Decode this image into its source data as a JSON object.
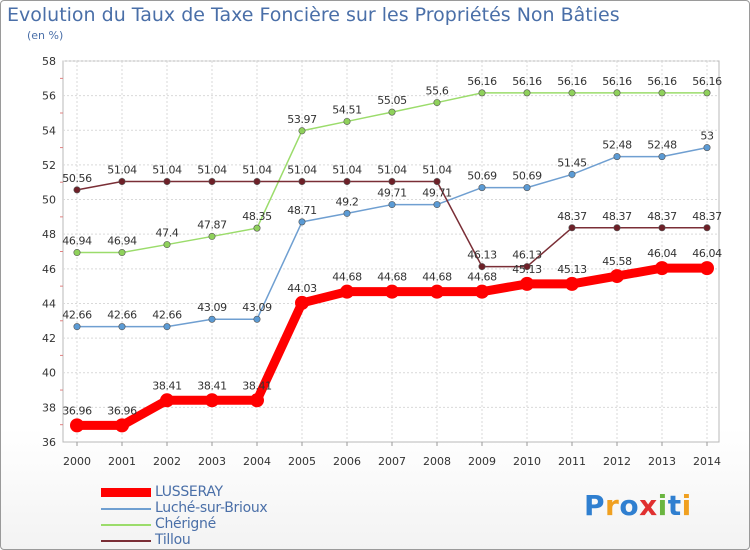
{
  "chart_data": {
    "type": "line",
    "title": "Evolution du Taux de Taxe Foncière sur les Propriétés Non Bâties",
    "subtitle": "(en %)",
    "categories": [
      "2000",
      "2001",
      "2002",
      "2003",
      "2004",
      "2005",
      "2006",
      "2007",
      "2008",
      "2009",
      "2010",
      "2011",
      "2012",
      "2013",
      "2014"
    ],
    "ylim": [
      36,
      58
    ],
    "yticks": [
      36,
      38,
      40,
      42,
      44,
      46,
      48,
      50,
      52,
      54,
      56,
      58
    ],
    "grid": true,
    "legend_position": "bottom-left",
    "series": [
      {
        "name": "LUSSERAY",
        "color": "#ff0000",
        "marker_color": "#ff0000",
        "emphasis": true,
        "values": [
          36.96,
          36.96,
          38.41,
          38.41,
          38.41,
          44.03,
          44.68,
          44.68,
          44.68,
          44.68,
          45.13,
          45.13,
          45.58,
          46.04,
          46.04
        ],
        "labels": [
          "36.96",
          "36.96",
          "38.41",
          "38.41",
          "38.41",
          "44.03",
          "44.68",
          "44.68",
          "44.68",
          "44.68",
          "45.13",
          "45.13",
          "45.58",
          "46.04",
          "46.04"
        ]
      },
      {
        "name": "Luché-sur-Brioux",
        "color": "#6f9fd1",
        "marker_color": "#5b9bd5",
        "emphasis": false,
        "values": [
          42.66,
          42.66,
          42.66,
          43.09,
          43.09,
          48.71,
          49.2,
          49.71,
          49.71,
          50.69,
          50.69,
          51.45,
          52.48,
          52.48,
          53
        ],
        "labels": [
          "42.66",
          "42.66",
          "42.66",
          "43.09",
          "43.09",
          "48.71",
          "49.2",
          "49.71",
          "49.71",
          "50.69",
          "50.69",
          "51.45",
          "52.48",
          "52.48",
          "53"
        ]
      },
      {
        "name": "Chérigné",
        "color": "#9bdc6b",
        "marker_color": "#8fd15b",
        "emphasis": false,
        "values": [
          46.94,
          46.94,
          47.4,
          47.87,
          48.35,
          53.97,
          54.51,
          55.05,
          55.6,
          56.16,
          56.16,
          56.16,
          56.16,
          56.16,
          56.16
        ],
        "labels": [
          "46.94",
          "46.94",
          "47.4",
          "47.87",
          "48.35",
          "53.97",
          "54.51",
          "55.05",
          "55.6",
          "56.16",
          "56.16",
          "56.16",
          "56.16",
          "56.16",
          "56.16"
        ]
      },
      {
        "name": "Tillou",
        "color": "#7a2e36",
        "marker_color": "#6e2028",
        "emphasis": false,
        "values": [
          50.56,
          51.04,
          51.04,
          51.04,
          51.04,
          51.04,
          51.04,
          51.04,
          51.04,
          46.13,
          46.13,
          48.37,
          48.37,
          48.37,
          48.37
        ],
        "labels": [
          "50.56",
          "51.04",
          "51.04",
          "51.04",
          "51.04",
          "51.04",
          "51.04",
          "51.04",
          "51.04",
          "46.13",
          "46.13",
          "48.37",
          "48.37",
          "48.37",
          "48.37"
        ]
      }
    ],
    "label_order": [
      2,
      1,
      3,
      0
    ]
  },
  "logo": {
    "letters": [
      "P",
      "r",
      "o",
      "x",
      "i",
      "t",
      "i"
    ],
    "colors": [
      "#2f7fd0",
      "#f0a020",
      "#2f7fd0",
      "#e03030",
      "#6ab540",
      "#2f7fd0",
      "#f0a020"
    ]
  }
}
